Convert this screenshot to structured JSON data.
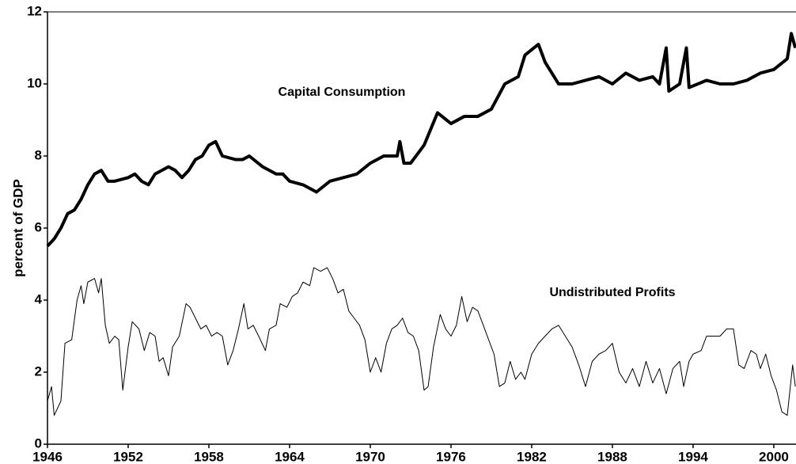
{
  "chart_data": {
    "type": "line",
    "y_label": "percent of GDP",
    "annotations": [
      "Capital Consumption",
      "Undistributed Profits"
    ],
    "xlim": [
      1946,
      2001.65
    ],
    "xticks": [
      1946,
      1952,
      1958,
      1964,
      1970,
      1976,
      1982,
      1988,
      1994,
      2000
    ],
    "ylim": [
      0,
      12
    ],
    "yticks": [
      0,
      2,
      4,
      6,
      8,
      10,
      12
    ],
    "grid": false,
    "series": [
      {
        "color": "#000000",
        "width": 4,
        "x": [
          1946,
          1946.5,
          1947,
          1947.5,
          1948,
          1948.5,
          1949,
          1949.5,
          1950,
          1950.5,
          1951,
          1952,
          1952.5,
          1953,
          1953.5,
          1954,
          1955,
          1955.5,
          1956,
          1956.5,
          1957,
          1957.5,
          1958,
          1958.5,
          1959,
          1960,
          1960.5,
          1961,
          1962,
          1963,
          1963.5,
          1964,
          1965,
          1966,
          1967,
          1968,
          1969,
          1970,
          1971,
          1972,
          1972.2,
          1972.5,
          1973,
          1974,
          1975,
          1976,
          1977,
          1978,
          1979,
          1980,
          1981,
          1981.5,
          1982.5,
          1983,
          1984,
          1985,
          1986,
          1987,
          1988,
          1989,
          1990,
          1991,
          1991.5,
          1992,
          1992.2,
          1993,
          1993.5,
          1993.7,
          1995,
          1996,
          1997,
          1998,
          1999,
          2000,
          2001,
          2001.3,
          2001.6
        ],
        "values": [
          5.5,
          5.7,
          6.0,
          6.4,
          6.5,
          6.8,
          7.2,
          7.5,
          7.6,
          7.3,
          7.3,
          7.4,
          7.5,
          7.3,
          7.2,
          7.5,
          7.7,
          7.6,
          7.4,
          7.6,
          7.9,
          8.0,
          8.3,
          8.4,
          8.0,
          7.9,
          7.9,
          8.0,
          7.7,
          7.5,
          7.5,
          7.3,
          7.2,
          7.0,
          7.3,
          7.4,
          7.5,
          7.8,
          8.0,
          8.0,
          8.4,
          7.8,
          7.8,
          8.3,
          9.2,
          8.9,
          9.1,
          9.1,
          9.3,
          10.0,
          10.2,
          10.8,
          11.1,
          10.6,
          10.0,
          10.0,
          10.1,
          10.2,
          10.0,
          10.3,
          10.1,
          10.2,
          10.0,
          11.0,
          9.8,
          10.0,
          11.0,
          9.9,
          10.1,
          10.0,
          10.0,
          10.1,
          10.3,
          10.4,
          10.7,
          11.4,
          11.0
        ]
      },
      {
        "color": "#000000",
        "width": 1,
        "x": [
          1946,
          1946.3,
          1946.5,
          1947,
          1947.3,
          1947.8,
          1948.2,
          1948.5,
          1948.7,
          1949,
          1949.5,
          1949.8,
          1950,
          1950.3,
          1950.6,
          1951,
          1951.3,
          1951.6,
          1952,
          1952.3,
          1952.8,
          1953.2,
          1953.6,
          1954,
          1954.3,
          1954.6,
          1955,
          1955.3,
          1955.8,
          1956.3,
          1956.6,
          1957,
          1957.4,
          1957.8,
          1958.2,
          1958.6,
          1959,
          1959.4,
          1959.8,
          1960.2,
          1960.6,
          1960.9,
          1961.3,
          1961.7,
          1962.2,
          1962.5,
          1963,
          1963.3,
          1963.8,
          1964.2,
          1964.6,
          1965,
          1965.5,
          1965.8,
          1966.3,
          1966.8,
          1967.2,
          1967.6,
          1968,
          1968.4,
          1968.8,
          1969.2,
          1969.6,
          1970,
          1970.4,
          1970.8,
          1971.2,
          1971.6,
          1972,
          1972.4,
          1972.8,
          1973.2,
          1973.6,
          1974,
          1974.3,
          1974.7,
          1975.2,
          1975.6,
          1976,
          1976.4,
          1976.8,
          1977.2,
          1977.6,
          1978,
          1978.4,
          1978.8,
          1979.2,
          1979.6,
          1980,
          1980.4,
          1980.8,
          1981.2,
          1981.5,
          1982,
          1982.5,
          1983,
          1983.5,
          1984,
          1984.5,
          1985,
          1985.5,
          1986,
          1986.5,
          1987,
          1987.5,
          1988,
          1988.5,
          1989,
          1989.5,
          1990,
          1990.5,
          1991,
          1991.5,
          1992,
          1992.5,
          1993,
          1993.3,
          1993.7,
          1994,
          1994.6,
          1995,
          1995.5,
          1996,
          1996.5,
          1997,
          1997.4,
          1997.8,
          1998.3,
          1998.7,
          1999,
          1999.4,
          1999.8,
          2000.2,
          2000.6,
          2001,
          2001.4,
          2001.6
        ],
        "values": [
          1.2,
          1.6,
          0.8,
          1.2,
          2.8,
          2.9,
          4.0,
          4.4,
          3.9,
          4.5,
          4.6,
          4.2,
          4.6,
          3.3,
          2.8,
          3.0,
          2.9,
          1.5,
          2.7,
          3.4,
          3.2,
          2.6,
          3.1,
          3.0,
          2.3,
          2.4,
          1.9,
          2.7,
          3.0,
          3.9,
          3.8,
          3.5,
          3.2,
          3.3,
          3.0,
          3.1,
          3.0,
          2.2,
          2.6,
          3.2,
          3.9,
          3.2,
          3.3,
          3.0,
          2.6,
          3.2,
          3.3,
          3.9,
          3.8,
          4.1,
          4.2,
          4.5,
          4.4,
          4.9,
          4.8,
          4.9,
          4.6,
          4.2,
          4.3,
          3.7,
          3.5,
          3.3,
          2.9,
          2.0,
          2.4,
          2.0,
          2.8,
          3.2,
          3.3,
          3.5,
          3.1,
          3.0,
          2.6,
          1.5,
          1.6,
          2.7,
          3.6,
          3.2,
          3.0,
          3.3,
          4.1,
          3.4,
          3.8,
          3.7,
          3.3,
          2.9,
          2.5,
          1.6,
          1.7,
          2.3,
          1.8,
          2.0,
          1.8,
          2.5,
          2.8,
          3.0,
          3.2,
          3.3,
          3.0,
          2.7,
          2.2,
          1.6,
          2.3,
          2.5,
          2.6,
          2.8,
          2.0,
          1.7,
          2.1,
          1.6,
          2.3,
          1.7,
          2.1,
          1.4,
          2.1,
          2.3,
          1.6,
          2.3,
          2.5,
          2.6,
          3.0,
          3.0,
          3.0,
          3.2,
          3.2,
          2.2,
          2.1,
          2.6,
          2.5,
          2.1,
          2.5,
          1.9,
          1.5,
          0.9,
          0.8,
          2.2,
          1.6
        ]
      }
    ]
  }
}
